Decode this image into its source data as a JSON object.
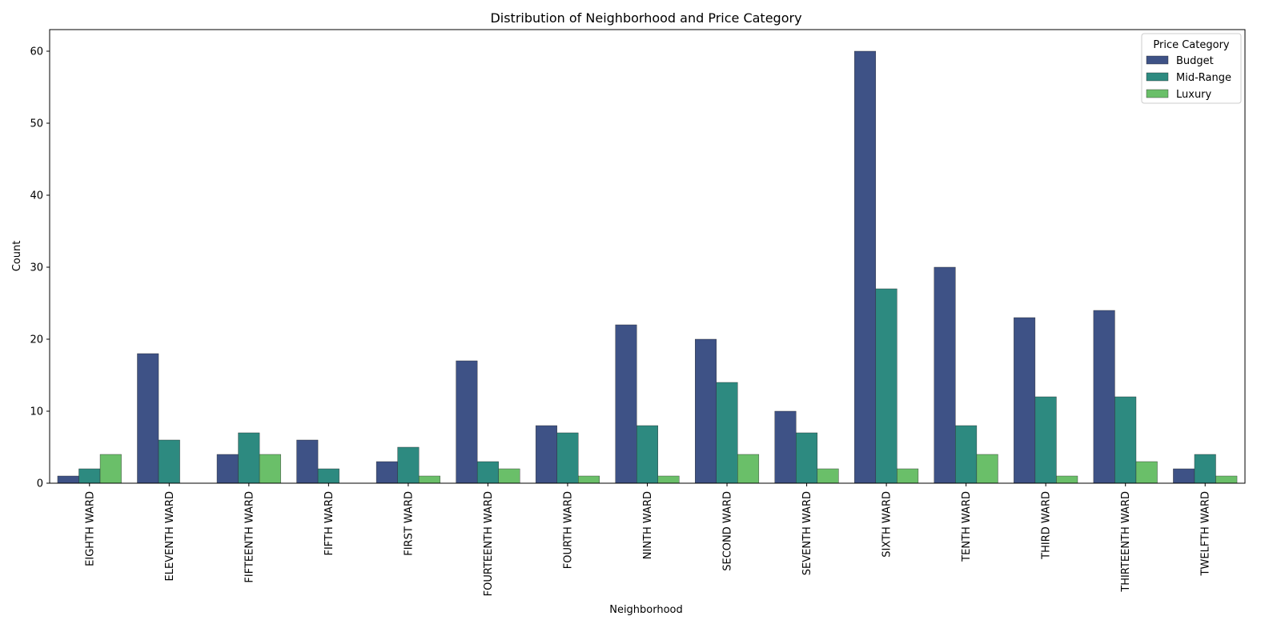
{
  "chart_data": {
    "type": "bar",
    "title": "Distribution of Neighborhood and Price Category",
    "xlabel": "Neighborhood",
    "ylabel": "Count",
    "ylim": [
      0,
      63
    ],
    "yticks": [
      0,
      10,
      20,
      30,
      40,
      50,
      60
    ],
    "grid": false,
    "legend": {
      "title": "Price Category",
      "placement": "top-right"
    },
    "categories": [
      "EIGHTH WARD",
      "ELEVENTH WARD",
      "FIFTEENTH WARD",
      "FIFTH WARD",
      "FIRST WARD",
      "FOURTEENTH WARD",
      "FOURTH WARD",
      "NINTH WARD",
      "SECOND WARD",
      "SEVENTH WARD",
      "SIXTH WARD",
      "TENTH WARD",
      "THIRD WARD",
      "THIRTEENTH WARD",
      "TWELFTH WARD"
    ],
    "series": [
      {
        "name": "Budget",
        "color": "#3e5286",
        "values": [
          1,
          18,
          4,
          6,
          3,
          17,
          8,
          22,
          20,
          10,
          60,
          30,
          23,
          24,
          2
        ]
      },
      {
        "name": "Mid-Range",
        "color": "#2d8a80",
        "values": [
          2,
          6,
          7,
          2,
          5,
          3,
          7,
          8,
          14,
          7,
          27,
          8,
          12,
          12,
          4
        ]
      },
      {
        "name": "Luxury",
        "color": "#6abf69",
        "values": [
          4,
          0,
          4,
          0,
          1,
          2,
          1,
          1,
          4,
          2,
          2,
          4,
          1,
          3,
          1
        ]
      }
    ]
  }
}
